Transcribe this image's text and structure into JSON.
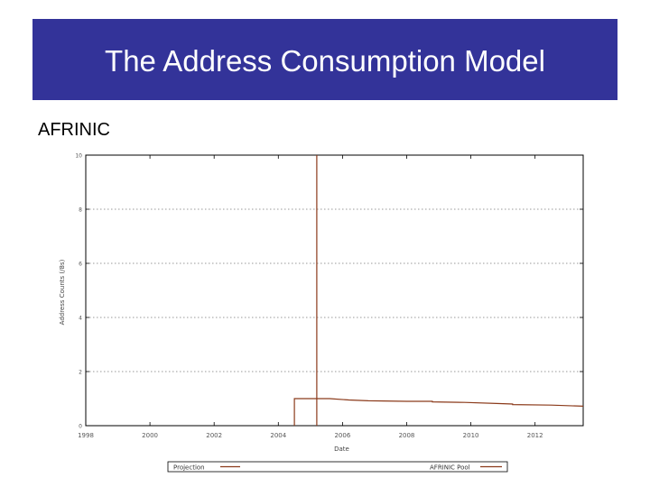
{
  "slide": {
    "title": "The Address Consumption Model",
    "subtitle": "AFRINIC"
  },
  "colors": {
    "title_band": "#333399",
    "projection": "#8b3a1a",
    "pool": "#8b3a1a"
  },
  "chart_data": {
    "type": "line",
    "title": "",
    "xlabel": "Date",
    "ylabel": "Address Counts (/8s)",
    "xlim": [
      1998,
      2013.5
    ],
    "ylim": [
      0,
      10
    ],
    "x_ticks": [
      1998,
      2000,
      2002,
      2004,
      2006,
      2008,
      2010,
      2012
    ],
    "x_tick_labels": [
      "1998",
      "2000",
      "2002",
      "2004",
      "2006",
      "2008",
      "2010",
      "2012"
    ],
    "y_ticks": [
      0,
      2,
      4,
      6,
      8,
      10
    ],
    "y_tick_labels": [
      "0",
      "2",
      "4",
      "6",
      "8",
      "10"
    ],
    "grid": true,
    "legend_position": "bottom",
    "series": [
      {
        "name": "Projection",
        "points": [
          [
            2005.2,
            10
          ],
          [
            2005.2,
            0
          ]
        ]
      },
      {
        "name": "AFRINIC Pool",
        "points": [
          [
            2004.5,
            0
          ],
          [
            2004.5,
            1.0
          ],
          [
            2005.6,
            1.0
          ],
          [
            2006.2,
            0.95
          ],
          [
            2006.8,
            0.92
          ],
          [
            2008.0,
            0.9
          ],
          [
            2008.8,
            0.9
          ],
          [
            2008.8,
            0.88
          ],
          [
            2009.8,
            0.86
          ],
          [
            2010.8,
            0.82
          ],
          [
            2011.3,
            0.8
          ],
          [
            2011.3,
            0.78
          ],
          [
            2012.5,
            0.76
          ],
          [
            2013.5,
            0.72
          ]
        ]
      }
    ]
  }
}
